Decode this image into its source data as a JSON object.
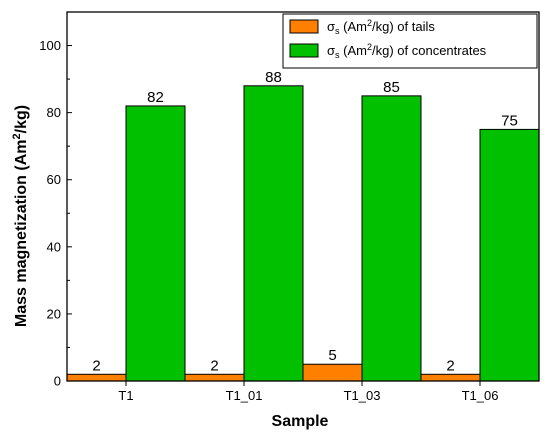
{
  "chart_data": {
    "type": "bar",
    "categories": [
      "T1",
      "T1_01",
      "T1_03",
      "T1_06"
    ],
    "series": [
      {
        "name": "σs (Am²/kg) of tails",
        "legend": {
          "symbol": "σ",
          "subscript": "s",
          "unit_prefix": " (Am",
          "unit_sup": "2",
          "unit_suffix": "/kg) of tails"
        },
        "values": [
          2,
          2,
          5,
          2
        ],
        "color": "#ff8000"
      },
      {
        "name": "σs (Am²/kg) of concentrates",
        "legend": {
          "symbol": "σ",
          "subscript": "s",
          "unit_prefix": " (Am",
          "unit_sup": "2",
          "unit_suffix": "/kg) of concentrates"
        },
        "values": [
          82,
          88,
          85,
          75
        ],
        "color": "#00c000"
      }
    ],
    "xlabel": "Sample",
    "ylabel": "Mass magnetization (Am²/kg)",
    "ylabel_parts": {
      "prefix": "Mass magnetization (Am",
      "sup": "2",
      "suffix": "/kg)"
    },
    "ylim": [
      0,
      110
    ],
    "yticks": [
      0,
      20,
      40,
      60,
      80,
      100
    ],
    "grid": false,
    "legend_position": "top-right"
  }
}
